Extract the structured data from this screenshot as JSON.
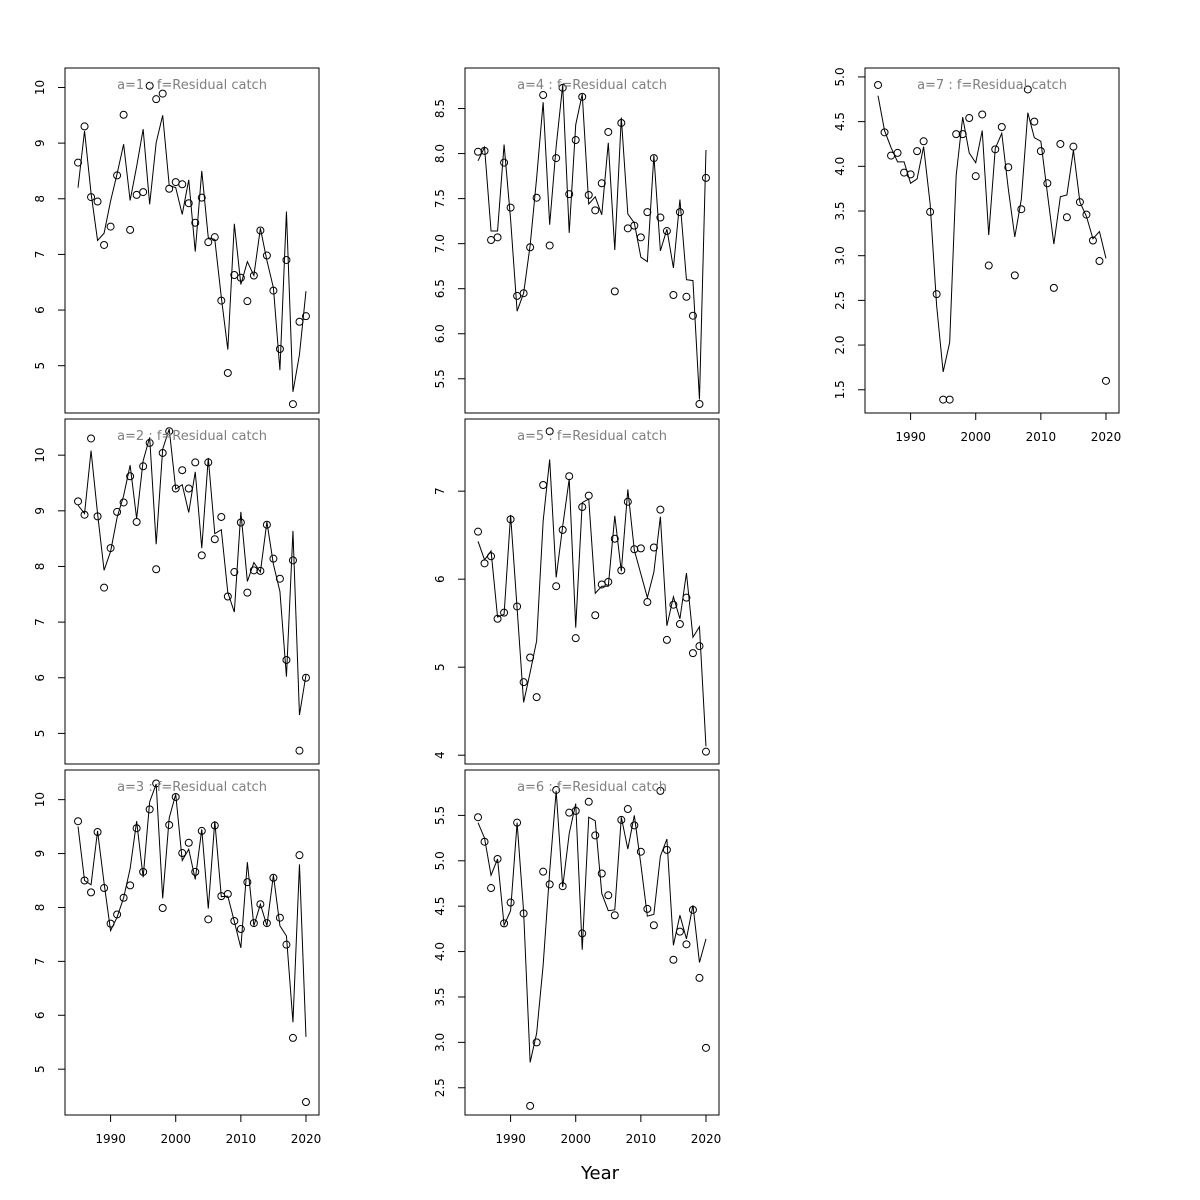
{
  "xlabel": "Year",
  "chart_data": [
    {
      "type": "line",
      "age": 1,
      "title": "a=1 : f=Residual catch",
      "xlim": [
        1983,
        2022
      ],
      "ylim": [
        4.15,
        10.35
      ],
      "xticks": [
        1990,
        2000,
        2010,
        2020
      ],
      "yticks": [
        5,
        6,
        7,
        8,
        9,
        10
      ],
      "x": [
        1985,
        1986,
        1987,
        1988,
        1989,
        1990,
        1991,
        1992,
        1993,
        1994,
        1995,
        1996,
        1997,
        1998,
        1999,
        2000,
        2001,
        2002,
        2003,
        2004,
        2005,
        2006,
        2007,
        2008,
        2009,
        2010,
        2011,
        2012,
        2013,
        2014,
        2015,
        2016,
        2017,
        2018,
        2019,
        2020
      ],
      "series": [
        {
          "name": "Observed",
          "style": "points",
          "values": [
            8.65,
            9.3,
            8.03,
            7.95,
            7.17,
            7.5,
            8.42,
            9.51,
            7.44,
            8.07,
            8.12,
            10.03,
            9.79,
            9.89,
            8.18,
            8.3,
            8.26,
            7.92,
            7.57,
            8.02,
            7.22,
            7.31,
            6.17,
            4.87,
            6.63,
            6.58,
            6.16,
            6.62,
            7.43,
            6.98,
            6.35,
            5.3,
            6.9,
            4.31,
            5.79,
            5.89
          ]
        },
        {
          "name": "Fitted",
          "style": "line",
          "values": [
            8.2,
            9.22,
            8.1,
            7.25,
            7.38,
            7.96,
            8.45,
            8.98,
            7.97,
            8.58,
            9.25,
            7.9,
            9.01,
            9.5,
            8.24,
            8.2,
            7.72,
            8.34,
            7.05,
            8.5,
            7.3,
            7.27,
            6.23,
            5.29,
            7.55,
            6.46,
            6.87,
            6.62,
            7.47,
            6.89,
            6.4,
            4.92,
            7.77,
            4.53,
            5.2,
            6.34
          ]
        }
      ]
    },
    {
      "type": "line",
      "age": 2,
      "title": "a=2 : f=Residual catch",
      "xlim": [
        1983,
        2022
      ],
      "ylim": [
        4.45,
        10.65
      ],
      "xticks": [
        1990,
        2000,
        2010,
        2020
      ],
      "yticks": [
        5,
        6,
        7,
        8,
        9,
        10
      ],
      "x": [
        1985,
        1986,
        1987,
        1988,
        1989,
        1990,
        1991,
        1992,
        1993,
        1994,
        1995,
        1996,
        1997,
        1998,
        1999,
        2000,
        2001,
        2002,
        2003,
        2004,
        2005,
        2006,
        2007,
        2008,
        2009,
        2010,
        2011,
        2012,
        2013,
        2014,
        2015,
        2016,
        2017,
        2018,
        2019,
        2020
      ],
      "series": [
        {
          "name": "Observed",
          "style": "points",
          "values": [
            9.17,
            8.93,
            10.3,
            8.9,
            7.62,
            8.33,
            8.98,
            9.15,
            9.62,
            8.8,
            9.8,
            10.22,
            7.95,
            10.04,
            10.43,
            9.4,
            9.73,
            9.4,
            9.87,
            8.2,
            9.87,
            8.49,
            8.89,
            7.46,
            7.9,
            8.79,
            7.53,
            7.93,
            7.92,
            8.75,
            8.14,
            7.78,
            6.32,
            8.11,
            4.69,
            6.0
          ]
        },
        {
          "name": "Fitted",
          "style": "line",
          "values": [
            9.1,
            8.95,
            10.08,
            8.95,
            7.93,
            8.27,
            8.88,
            9.27,
            9.82,
            8.86,
            9.9,
            10.32,
            8.4,
            10.11,
            10.47,
            9.39,
            9.47,
            8.97,
            9.7,
            8.33,
            9.95,
            8.59,
            8.66,
            7.53,
            7.18,
            8.98,
            7.73,
            8.07,
            7.9,
            8.8,
            8.04,
            7.55,
            6.02,
            8.64,
            5.33,
            6.05
          ]
        }
      ]
    },
    {
      "type": "line",
      "age": 3,
      "title": "a=3 : f=Residual catch",
      "xlim": [
        1983,
        2022
      ],
      "ylim": [
        4.15,
        10.55
      ],
      "xticks": [
        1990,
        2000,
        2010,
        2020
      ],
      "yticks": [
        5,
        6,
        7,
        8,
        9,
        10
      ],
      "x": [
        1985,
        1986,
        1987,
        1988,
        1989,
        1990,
        1991,
        1992,
        1993,
        1994,
        1995,
        1996,
        1997,
        1998,
        1999,
        2000,
        2001,
        2002,
        2003,
        2004,
        2005,
        2006,
        2007,
        2008,
        2009,
        2010,
        2011,
        2012,
        2013,
        2014,
        2015,
        2016,
        2017,
        2018,
        2019,
        2020
      ],
      "series": [
        {
          "name": "Observed",
          "style": "points",
          "values": [
            9.6,
            8.5,
            8.28,
            9.4,
            8.36,
            7.7,
            7.87,
            8.18,
            8.41,
            9.47,
            8.66,
            9.82,
            10.3,
            7.99,
            9.53,
            10.05,
            9.01,
            9.2,
            8.66,
            9.42,
            7.78,
            9.52,
            8.21,
            8.25,
            7.75,
            7.6,
            8.47,
            7.71,
            8.06,
            7.71,
            8.55,
            7.81,
            7.31,
            5.58,
            8.97,
            4.39
          ]
        },
        {
          "name": "Fitted",
          "style": "line",
          "values": [
            9.5,
            8.5,
            8.42,
            9.42,
            8.45,
            7.57,
            7.82,
            8.18,
            8.72,
            9.6,
            8.56,
            9.96,
            10.29,
            8.17,
            9.66,
            10.1,
            8.87,
            9.08,
            8.52,
            9.45,
            7.98,
            9.6,
            8.2,
            8.21,
            7.74,
            7.25,
            8.84,
            7.66,
            8.06,
            7.66,
            8.6,
            7.66,
            7.47,
            5.87,
            8.8,
            5.6
          ]
        }
      ]
    },
    {
      "type": "line",
      "age": 4,
      "title": "a=4 : f=Residual catch",
      "xlim": [
        1983,
        2022
      ],
      "ylim": [
        5.12,
        8.95
      ],
      "xticks": [
        1990,
        2000,
        2010,
        2020
      ],
      "yticks": [
        5.5,
        6.0,
        6.5,
        7.0,
        7.5,
        8.0,
        8.5
      ],
      "x": [
        1985,
        1986,
        1987,
        1988,
        1989,
        1990,
        1991,
        1992,
        1993,
        1994,
        1995,
        1996,
        1997,
        1998,
        1999,
        2000,
        2001,
        2002,
        2003,
        2004,
        2005,
        2006,
        2007,
        2008,
        2009,
        2010,
        2011,
        2012,
        2013,
        2014,
        2015,
        2016,
        2017,
        2018,
        2019,
        2020
      ],
      "series": [
        {
          "name": "Observed",
          "style": "points",
          "values": [
            8.02,
            8.03,
            7.04,
            7.07,
            7.9,
            7.4,
            6.42,
            6.45,
            6.96,
            7.51,
            8.65,
            6.98,
            7.95,
            8.73,
            7.55,
            8.15,
            8.63,
            7.54,
            7.37,
            7.67,
            8.24,
            6.47,
            8.34,
            7.17,
            7.2,
            7.07,
            7.35,
            7.95,
            7.29,
            7.14,
            6.43,
            7.35,
            6.41,
            6.2,
            5.22,
            7.73
          ]
        },
        {
          "name": "Fitted",
          "style": "line",
          "values": [
            7.92,
            8.07,
            7.14,
            7.14,
            8.1,
            7.27,
            6.25,
            6.45,
            6.98,
            7.73,
            8.57,
            7.21,
            8.08,
            8.76,
            7.12,
            8.32,
            8.66,
            7.44,
            7.52,
            7.32,
            8.12,
            6.93,
            8.4,
            7.33,
            7.23,
            6.85,
            6.8,
            7.98,
            6.92,
            7.16,
            6.73,
            7.49,
            6.6,
            6.59,
            5.27,
            8.04
          ]
        }
      ]
    },
    {
      "type": "line",
      "age": 5,
      "title": "a=5 : f=Residual catch",
      "xlim": [
        1983,
        2022
      ],
      "ylim": [
        3.9,
        7.82
      ],
      "xticks": [
        1990,
        2000,
        2010,
        2020
      ],
      "yticks": [
        4,
        5,
        6,
        7
      ],
      "x": [
        1985,
        1986,
        1987,
        1988,
        1989,
        1990,
        1991,
        1992,
        1993,
        1994,
        1995,
        1996,
        1997,
        1998,
        1999,
        2000,
        2001,
        2002,
        2003,
        2004,
        2005,
        2006,
        2007,
        2008,
        2009,
        2010,
        2011,
        2012,
        2013,
        2014,
        2015,
        2016,
        2017,
        2018,
        2019,
        2020
      ],
      "series": [
        {
          "name": "Observed",
          "style": "points",
          "values": [
            6.54,
            6.18,
            6.26,
            5.55,
            5.62,
            6.68,
            5.69,
            4.83,
            5.11,
            4.66,
            7.07,
            7.68,
            5.92,
            6.56,
            7.17,
            5.33,
            6.82,
            6.95,
            5.59,
            5.94,
            5.97,
            6.46,
            6.1,
            6.88,
            6.34,
            6.35,
            5.74,
            6.36,
            6.79,
            5.31,
            5.71,
            5.49,
            5.79,
            5.16,
            5.24,
            4.04
          ]
        },
        {
          "name": "Fitted",
          "style": "line",
          "values": [
            6.43,
            6.22,
            6.32,
            5.57,
            5.6,
            6.73,
            5.67,
            4.6,
            4.94,
            5.3,
            6.66,
            7.36,
            6.02,
            6.6,
            7.14,
            5.45,
            6.87,
            6.91,
            5.84,
            5.92,
            5.92,
            6.72,
            6.09,
            7.02,
            6.33,
            6.06,
            5.79,
            6.08,
            6.71,
            5.47,
            5.8,
            5.55,
            6.07,
            5.34,
            5.46,
            4.1
          ]
        }
      ]
    },
    {
      "type": "line",
      "age": 6,
      "title": "a=6 : f=Residual catch",
      "xlim": [
        1983,
        2022
      ],
      "ylim": [
        2.2,
        6.0
      ],
      "xticks": [
        1990,
        2000,
        2010,
        2020
      ],
      "yticks": [
        2.5,
        3.0,
        3.5,
        4.0,
        4.5,
        5.0,
        5.5
      ],
      "x": [
        1985,
        1986,
        1987,
        1988,
        1989,
        1990,
        1991,
        1992,
        1993,
        1994,
        1995,
        1996,
        1997,
        1998,
        1999,
        2000,
        2001,
        2002,
        2003,
        2004,
        2005,
        2006,
        2007,
        2008,
        2009,
        2010,
        2011,
        2012,
        2013,
        2014,
        2015,
        2016,
        2017,
        2018,
        2019,
        2020
      ],
      "series": [
        {
          "name": "Observed",
          "style": "points",
          "values": [
            5.48,
            5.21,
            4.7,
            5.02,
            4.31,
            4.54,
            5.42,
            4.42,
            2.3,
            3.0,
            4.88,
            4.74,
            5.78,
            4.72,
            5.53,
            5.55,
            4.2,
            5.65,
            5.28,
            4.86,
            4.62,
            4.4,
            5.45,
            5.57,
            5.39,
            5.1,
            4.47,
            4.29,
            5.77,
            5.12,
            3.91,
            4.22,
            4.08,
            4.46,
            3.71,
            2.94
          ]
        },
        {
          "name": "Fitted",
          "style": "line",
          "values": [
            5.42,
            5.25,
            4.84,
            5.02,
            4.29,
            4.45,
            5.42,
            4.44,
            2.78,
            3.1,
            3.85,
            4.88,
            5.77,
            4.71,
            5.3,
            5.63,
            4.02,
            5.48,
            5.44,
            4.64,
            4.45,
            4.46,
            5.48,
            5.13,
            5.5,
            4.96,
            4.39,
            4.41,
            5.05,
            5.24,
            4.07,
            4.4,
            4.14,
            4.51,
            3.88,
            4.14
          ]
        }
      ]
    },
    {
      "type": "line",
      "age": 7,
      "title": "a=7 : f=Residual catch",
      "xlim": [
        1983,
        2022
      ],
      "ylim": [
        1.24,
        5.1
      ],
      "xticks": [
        1990,
        2000,
        2010,
        2020
      ],
      "yticks": [
        1.5,
        2.0,
        2.5,
        3.0,
        3.5,
        4.0,
        4.5,
        5.0
      ],
      "x": [
        1985,
        1986,
        1987,
        1988,
        1989,
        1990,
        1991,
        1992,
        1993,
        1994,
        1995,
        1996,
        1997,
        1998,
        1999,
        2000,
        2001,
        2002,
        2003,
        2004,
        2005,
        2006,
        2007,
        2008,
        2009,
        2010,
        2011,
        2012,
        2013,
        2014,
        2015,
        2016,
        2017,
        2018,
        2019,
        2020
      ],
      "series": [
        {
          "name": "Observed",
          "style": "points",
          "values": [
            4.91,
            4.38,
            4.12,
            4.15,
            3.93,
            3.91,
            4.17,
            4.28,
            3.49,
            2.57,
            1.39,
            1.39,
            4.36,
            4.36,
            4.54,
            3.89,
            4.58,
            2.89,
            4.19,
            4.44,
            3.99,
            2.78,
            3.52,
            4.86,
            4.5,
            4.17,
            3.81,
            2.64,
            4.25,
            3.43,
            4.22,
            3.6,
            3.46,
            3.17,
            2.94,
            1.6
          ]
        },
        {
          "name": "Fitted",
          "style": "line",
          "values": [
            4.79,
            4.4,
            4.21,
            4.05,
            4.05,
            3.81,
            3.86,
            4.22,
            3.58,
            2.44,
            1.7,
            2.03,
            3.9,
            4.55,
            4.15,
            4.04,
            4.4,
            3.23,
            4.2,
            4.37,
            3.75,
            3.21,
            3.63,
            4.6,
            4.32,
            4.28,
            3.7,
            3.13,
            3.66,
            3.68,
            4.18,
            3.6,
            3.44,
            3.19,
            3.27,
            2.97
          ]
        }
      ]
    }
  ]
}
